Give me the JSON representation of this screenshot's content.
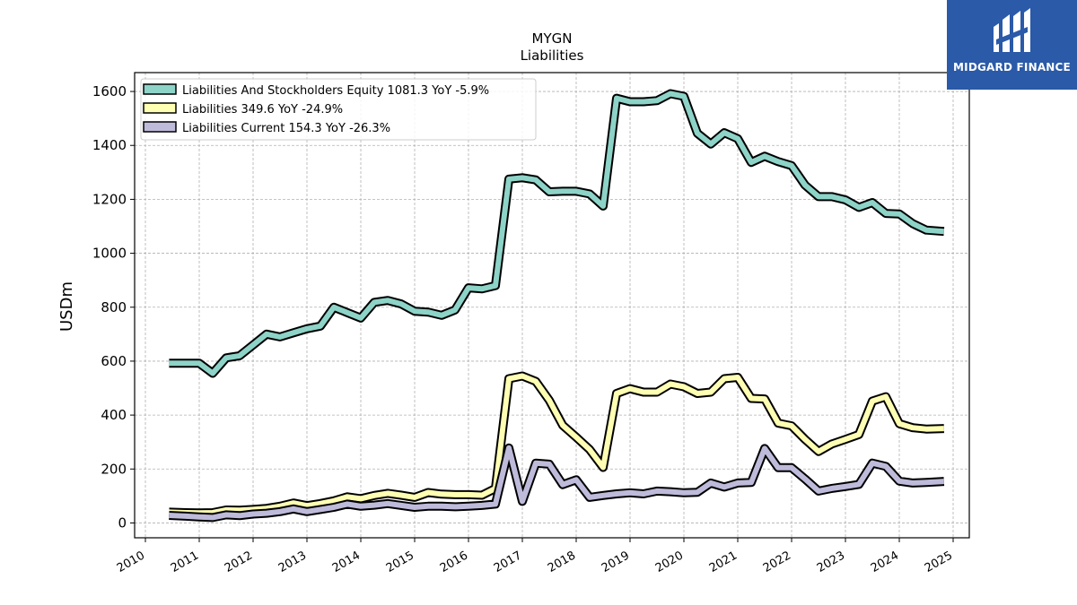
{
  "brand": {
    "name": "MIDGARD FINANCE",
    "color": "#2a5aa8"
  },
  "chart_data": {
    "type": "line",
    "title": "MYGN",
    "subtitle": "Liabilities",
    "xlabel": "",
    "ylabel": "USDm",
    "xlim": [
      2009.8,
      2025.3
    ],
    "ylim": [
      -55,
      1670
    ],
    "x_ticks": [
      2010,
      2011,
      2012,
      2013,
      2014,
      2015,
      2016,
      2017,
      2018,
      2019,
      2020,
      2021,
      2022,
      2023,
      2024,
      2025
    ],
    "y_ticks": [
      0,
      200,
      400,
      600,
      800,
      1000,
      1200,
      1400,
      1600
    ],
    "grid": true,
    "legend_position": "top-left",
    "series": [
      {
        "name": "Liabilities And Stockholders Equity  1081.3 YoY -5.9%",
        "color": "#8dd3c7",
        "x": [
          2010.44,
          2010.75,
          2011.0,
          2011.25,
          2011.5,
          2011.75,
          2012.0,
          2012.25,
          2012.5,
          2012.75,
          2013.0,
          2013.25,
          2013.5,
          2013.75,
          2014.0,
          2014.25,
          2014.5,
          2014.75,
          2015.0,
          2015.25,
          2015.5,
          2015.75,
          2016.0,
          2016.25,
          2016.5,
          2016.75,
          2017.0,
          2017.25,
          2017.5,
          2017.75,
          2018.0,
          2018.25,
          2018.5,
          2018.75,
          2019.0,
          2019.25,
          2019.5,
          2019.75,
          2020.0,
          2020.25,
          2020.5,
          2020.75,
          2021.0,
          2021.25,
          2021.5,
          2021.75,
          2022.0,
          2022.25,
          2022.5,
          2022.75,
          2023.0,
          2023.25,
          2023.5,
          2023.75,
          2024.0,
          2024.25,
          2024.5,
          2024.83
        ],
        "values": [
          592,
          592,
          592,
          555,
          612,
          620,
          660,
          700,
          690,
          705,
          720,
          730,
          800,
          780,
          760,
          818,
          825,
          812,
          785,
          782,
          770,
          790,
          872,
          868,
          880,
          1275,
          1280,
          1272,
          1228,
          1230,
          1230,
          1220,
          1175,
          1575,
          1562,
          1562,
          1566,
          1592,
          1582,
          1445,
          1405,
          1447,
          1425,
          1337,
          1360,
          1340,
          1325,
          1253,
          1210,
          1210,
          1198,
          1170,
          1188,
          1148,
          1146,
          1110,
          1086,
          1081
        ]
      },
      {
        "name": "Liabilities  349.6 YoY -24.9%",
        "color": "#ffffb3",
        "x": [
          2010.44,
          2010.75,
          2011.0,
          2011.25,
          2011.5,
          2011.75,
          2012.0,
          2012.25,
          2012.5,
          2012.75,
          2013.0,
          2013.25,
          2013.5,
          2013.75,
          2014.0,
          2014.25,
          2014.5,
          2014.75,
          2015.0,
          2015.25,
          2015.5,
          2015.75,
          2016.0,
          2016.25,
          2016.5,
          2016.75,
          2017.0,
          2017.25,
          2017.5,
          2017.75,
          2018.0,
          2018.25,
          2018.5,
          2018.75,
          2019.0,
          2019.25,
          2019.5,
          2019.75,
          2020.0,
          2020.25,
          2020.5,
          2020.75,
          2021.0,
          2021.25,
          2021.5,
          2021.75,
          2022.0,
          2022.25,
          2022.5,
          2022.75,
          2023.0,
          2023.25,
          2023.5,
          2023.75,
          2024.0,
          2024.25,
          2024.5,
          2024.83
        ],
        "values": [
          40,
          38,
          37,
          38,
          48,
          47,
          50,
          54,
          62,
          74,
          64,
          72,
          82,
          97,
          90,
          102,
          110,
          103,
          95,
          113,
          107,
          105,
          105,
          103,
          128,
          535,
          545,
          525,
          455,
          362,
          318,
          272,
          206,
          480,
          498,
          485,
          485,
          515,
          505,
          480,
          485,
          535,
          540,
          462,
          460,
          370,
          360,
          310,
          265,
          293,
          310,
          328,
          452,
          468,
          368,
          353,
          348,
          350
        ]
      },
      {
        "name": "Liabilities Current  154.3 YoY -26.3%",
        "color": "#bebada",
        "x": [
          2010.44,
          2010.75,
          2011.0,
          2011.25,
          2011.5,
          2011.75,
          2012.0,
          2012.25,
          2012.5,
          2012.75,
          2013.0,
          2013.25,
          2013.5,
          2013.75,
          2014.0,
          2014.25,
          2014.5,
          2014.75,
          2015.0,
          2015.25,
          2015.5,
          2015.75,
          2016.0,
          2016.25,
          2016.5,
          2016.75,
          2017.0,
          2017.25,
          2017.5,
          2017.75,
          2018.0,
          2018.25,
          2018.5,
          2018.75,
          2019.0,
          2019.25,
          2019.5,
          2019.75,
          2020.0,
          2020.25,
          2020.5,
          2020.75,
          2021.0,
          2021.25,
          2021.5,
          2021.75,
          2022.0,
          2022.25,
          2022.5,
          2022.75,
          2023.0,
          2023.25,
          2023.5,
          2023.75,
          2024.0,
          2024.25,
          2024.5,
          2024.83
        ],
        "values": [
          28,
          25,
          22,
          20,
          30,
          27,
          33,
          36,
          42,
          52,
          42,
          50,
          58,
          70,
          62,
          66,
          72,
          65,
          58,
          62,
          62,
          60,
          62,
          65,
          70,
          278,
          80,
          222,
          218,
          142,
          160,
          95,
          102,
          108,
          112,
          108,
          118,
          116,
          112,
          114,
          148,
          133,
          148,
          150,
          276,
          205,
          205,
          163,
          118,
          128,
          135,
          143,
          222,
          210,
          155,
          148,
          150,
          154
        ]
      }
    ]
  }
}
